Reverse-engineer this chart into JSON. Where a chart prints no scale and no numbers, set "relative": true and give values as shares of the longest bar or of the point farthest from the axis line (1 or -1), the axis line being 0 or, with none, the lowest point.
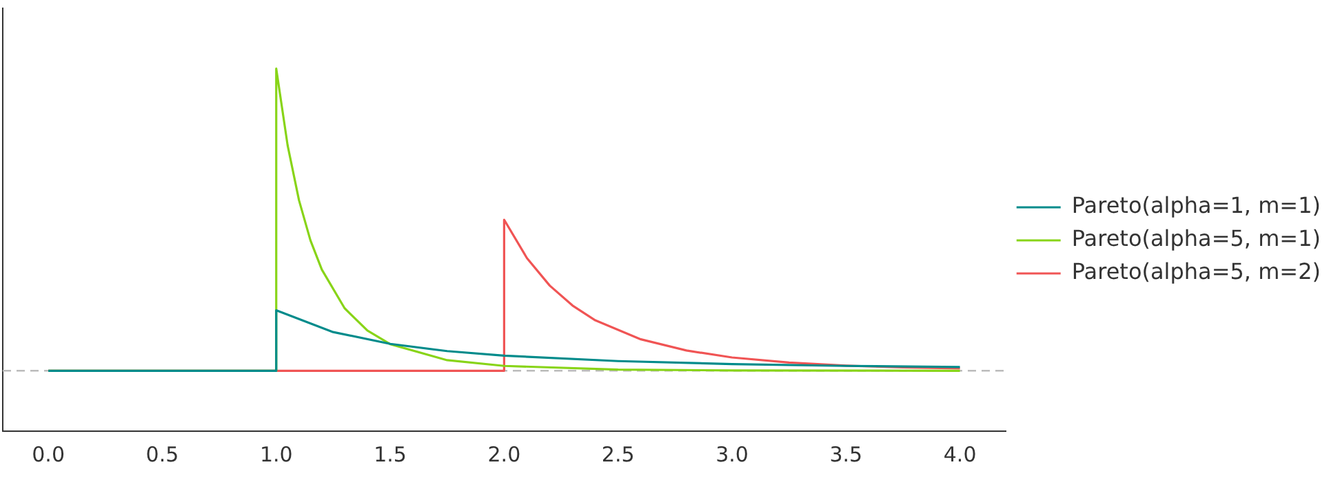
{
  "chart_data": {
    "type": "line",
    "relative": true,
    "xlim": [
      -0.2,
      4.2
    ],
    "xticks": [
      {
        "value": 0,
        "label": "0.0"
      },
      {
        "value": 0.5,
        "label": "0.5"
      },
      {
        "value": 1,
        "label": "1.0"
      },
      {
        "value": 1.5,
        "label": "1.5"
      },
      {
        "value": 2,
        "label": "2.0"
      },
      {
        "value": 2.5,
        "label": "2.5"
      },
      {
        "value": 3,
        "label": "3.0"
      },
      {
        "value": 3.5,
        "label": "3.5"
      },
      {
        "value": 4,
        "label": "4.0"
      }
    ],
    "series": [
      {
        "name": "Pareto(alpha=1, m=1)",
        "color": "#008b8b",
        "x": [
          0,
          1,
          1,
          1.25,
          1.5,
          1.75,
          2,
          2.5,
          3,
          3.5,
          4
        ],
        "values": [
          0,
          0,
          0.2,
          0.128,
          0.089,
          0.065,
          0.05,
          0.032,
          0.022,
          0.016,
          0.0125
        ]
      },
      {
        "name": "Pareto(alpha=5, m=1)",
        "color": "#88d418",
        "x": [
          0,
          1,
          1,
          1.05,
          1.1,
          1.15,
          1.2,
          1.3,
          1.4,
          1.5,
          1.75,
          2,
          2.5,
          3,
          4
        ],
        "values": [
          0,
          0,
          1,
          0.746,
          0.564,
          0.432,
          0.335,
          0.207,
          0.133,
          0.088,
          0.035,
          0.016,
          0.004,
          0.001,
          0
        ]
      },
      {
        "name": "Pareto(alpha=5, m=2)",
        "color": "#f05454",
        "x": [
          0,
          2,
          2,
          2.1,
          2.2,
          2.3,
          2.4,
          2.6,
          2.8,
          3,
          3.25,
          3.5,
          3.75,
          4
        ],
        "values": [
          0,
          0,
          0.5,
          0.373,
          0.282,
          0.216,
          0.167,
          0.104,
          0.067,
          0.044,
          0.027,
          0.017,
          0.011,
          0.008
        ]
      }
    ],
    "ref_lines": [
      {
        "axis": "y",
        "value": 0,
        "color": "#bbbbbb",
        "line_style": "dashed"
      }
    ],
    "legend": "right",
    "grid": false,
    "tick_labels": "x",
    "marker": "none",
    "line_style": "solid"
  }
}
